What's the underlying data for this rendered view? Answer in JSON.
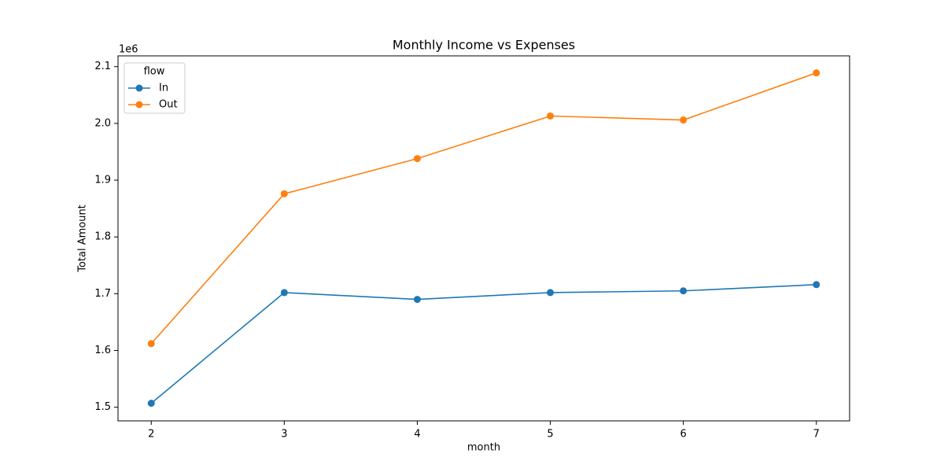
{
  "chart_data": {
    "type": "line",
    "title": "Monthly Income vs Expenses",
    "x_label": "month",
    "y_label": "Total Amount",
    "y_offset_label": "1e6",
    "x": [
      2,
      3,
      4,
      5,
      6,
      7
    ],
    "series": [
      {
        "name": "In",
        "color": "#1f77b4",
        "values": [
          1.507,
          1.702,
          1.69,
          1.702,
          1.705,
          1.716
        ]
      },
      {
        "name": "Out",
        "color": "#ff7f0e",
        "values": [
          1.612,
          1.876,
          1.938,
          2.013,
          2.006,
          2.089
        ]
      }
    ],
    "xlim": [
      1.75,
      7.25
    ],
    "xticks": [
      2,
      3,
      4,
      5,
      6,
      7
    ],
    "ylim": [
      1.476,
      2.119
    ],
    "yticks": [
      1.5,
      1.6,
      1.7,
      1.8,
      1.9,
      {
        "value": 2,
        "label": "2.0"
      },
      2.1
    ],
    "grid": false,
    "legend_title": "flow",
    "legend_position": "upper-left",
    "marker": "o"
  }
}
